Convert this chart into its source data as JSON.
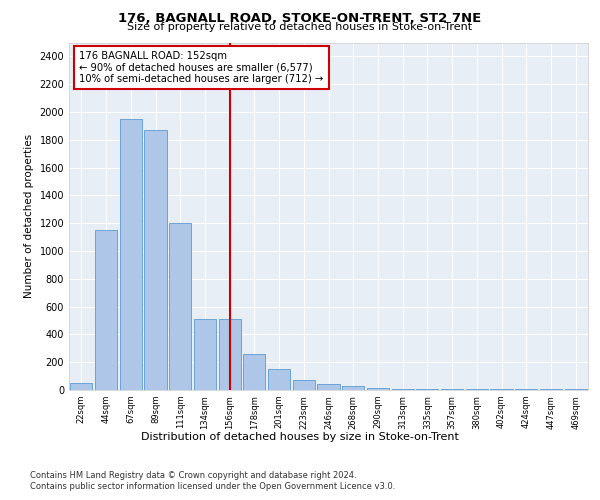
{
  "title": "176, BAGNALL ROAD, STOKE-ON-TRENT, ST2 7NE",
  "subtitle": "Size of property relative to detached houses in Stoke-on-Trent",
  "xlabel": "Distribution of detached houses by size in Stoke-on-Trent",
  "ylabel": "Number of detached properties",
  "categories": [
    "22sqm",
    "44sqm",
    "67sqm",
    "89sqm",
    "111sqm",
    "134sqm",
    "156sqm",
    "178sqm",
    "201sqm",
    "223sqm",
    "246sqm",
    "268sqm",
    "290sqm",
    "313sqm",
    "335sqm",
    "357sqm",
    "380sqm",
    "402sqm",
    "424sqm",
    "447sqm",
    "469sqm"
  ],
  "values": [
    50,
    1150,
    1950,
    1870,
    1200,
    510,
    510,
    260,
    150,
    70,
    40,
    30,
    15,
    10,
    10,
    5,
    5,
    5,
    5,
    5,
    5
  ],
  "bar_color": "#aec6e8",
  "bar_edge_color": "#5b9bd5",
  "highlight_x": "156sqm",
  "highlight_line_color": "#cc0000",
  "annotation_line1": "176 BAGNALL ROAD: 152sqm",
  "annotation_line2": "← 90% of detached houses are smaller (6,577)",
  "annotation_line3": "10% of semi-detached houses are larger (712) →",
  "annotation_box_color": "#ffffff",
  "annotation_box_edge_color": "#cc0000",
  "ylim": [
    0,
    2500
  ],
  "yticks": [
    0,
    200,
    400,
    600,
    800,
    1000,
    1200,
    1400,
    1600,
    1800,
    2000,
    2200,
    2400
  ],
  "footer1": "Contains HM Land Registry data © Crown copyright and database right 2024.",
  "footer2": "Contains public sector information licensed under the Open Government Licence v3.0.",
  "plot_bg_color": "#e8eef5"
}
